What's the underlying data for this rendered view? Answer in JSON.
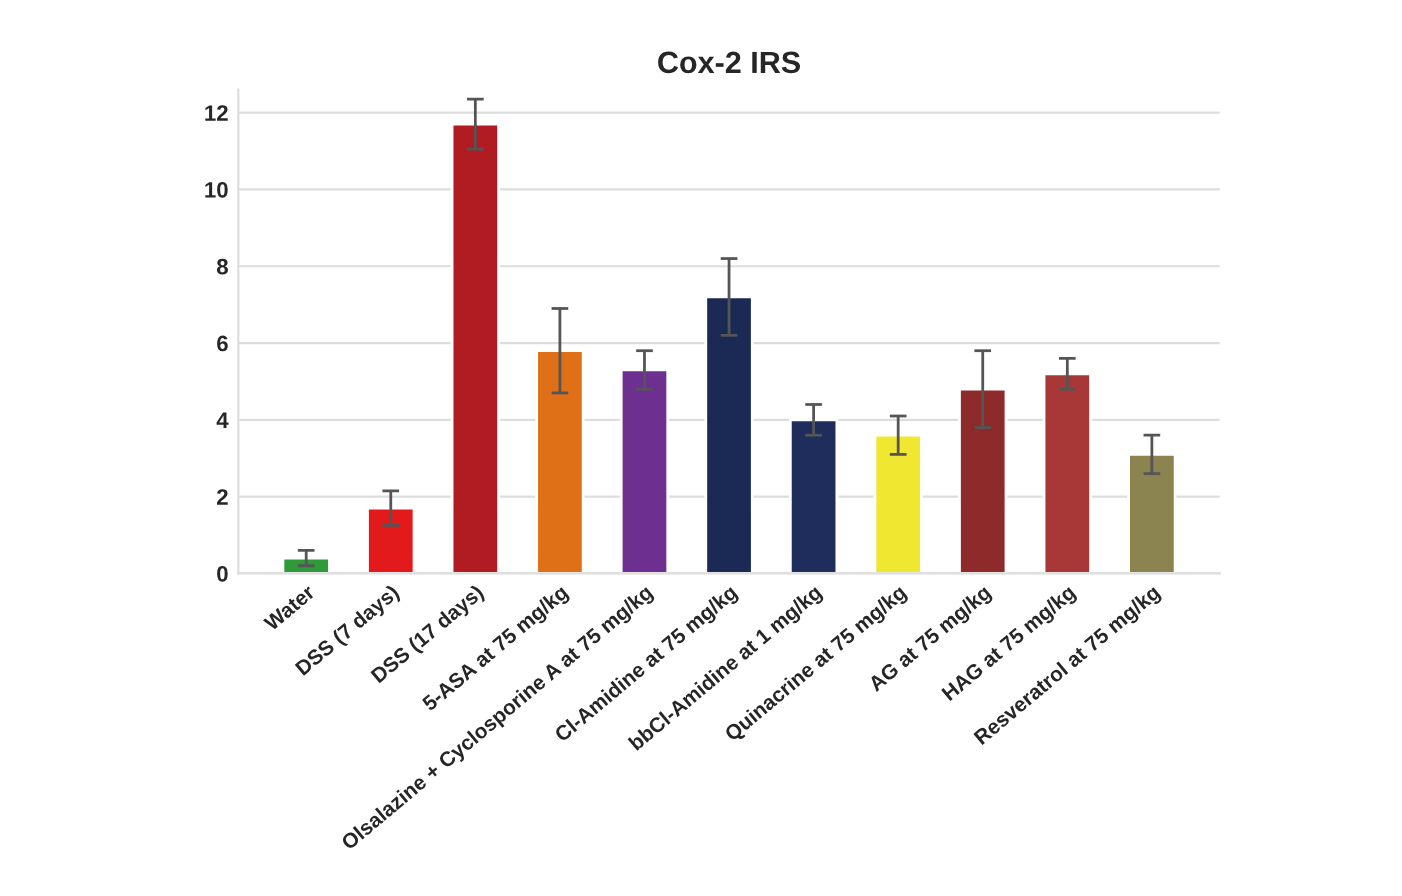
{
  "chart_data": {
    "type": "bar",
    "title": "Cox-2 IRS",
    "categories": [
      "Water",
      "DSS (7 days)",
      "DSS (17 days)",
      "5-ASA at 75 mg/kg",
      "Olsalazine + Cyclosporine A at 75 mg/kg",
      "Cl-Amidine at 75 mg/kg",
      "bbCl-Amidine at 1 mg/kg",
      "Quinacrine at 75 mg/kg",
      "AG at 75 mg/kg",
      "HAG at 75 mg/kg",
      "Resveratrol at 75 mg/kg"
    ],
    "values": [
      0.4,
      1.7,
      11.7,
      5.8,
      5.3,
      7.2,
      4.0,
      3.6,
      4.8,
      5.2,
      3.1
    ],
    "errors": [
      0.2,
      0.45,
      0.65,
      1.1,
      0.5,
      1.0,
      0.4,
      0.5,
      1.0,
      0.4,
      0.5
    ],
    "colors": [
      "#2e9a3a",
      "#e31a1c",
      "#b01c22",
      "#e07018",
      "#6e3090",
      "#1a2a55",
      "#1f2d5c",
      "#f0e830",
      "#8e2a2a",
      "#a83838",
      "#8c8450"
    ],
    "ylim": [
      0,
      12.6
    ],
    "yticks": [
      0,
      2,
      4,
      6,
      8,
      10,
      12
    ],
    "grid": "y"
  }
}
